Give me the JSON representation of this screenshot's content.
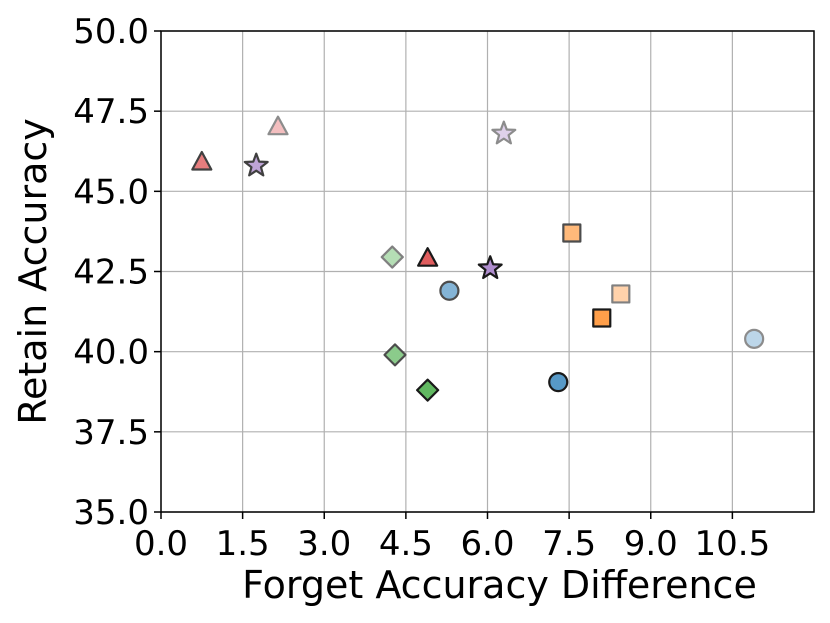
{
  "chart_data": {
    "type": "scatter",
    "title": "",
    "xlabel": "Forget Accuracy Difference",
    "ylabel": "Retain Accuracy",
    "xlim": [
      0.0,
      12.0
    ],
    "ylim": [
      35.0,
      50.0
    ],
    "xticks": [
      "0.0",
      "1.5",
      "3.0",
      "4.5",
      "6.0",
      "7.5",
      "9.0",
      "10.5"
    ],
    "xtick_values": [
      0.0,
      1.5,
      3.0,
      4.5,
      6.0,
      7.5,
      9.0,
      10.5
    ],
    "yticks": [
      "35.0",
      "37.5",
      "40.0",
      "42.5",
      "45.0",
      "47.5",
      "50.0"
    ],
    "ytick_values": [
      35.0,
      37.5,
      40.0,
      42.5,
      45.0,
      47.5,
      50.0
    ],
    "grid": true,
    "legend": "none",
    "points": [
      {
        "x": 0.75,
        "y": 45.9,
        "marker": "triangle",
        "color": "#d62728",
        "alpha": 0.6
      },
      {
        "x": 2.15,
        "y": 47.0,
        "marker": "triangle",
        "color": "#d62728",
        "alpha": 0.3
      },
      {
        "x": 4.9,
        "y": 42.9,
        "marker": "triangle",
        "color": "#d62728",
        "alpha": 0.75
      },
      {
        "x": 1.75,
        "y": 45.8,
        "marker": "star",
        "color": "#9467bd",
        "alpha": 0.6
      },
      {
        "x": 6.3,
        "y": 46.8,
        "marker": "star",
        "color": "#9467bd",
        "alpha": 0.3
      },
      {
        "x": 6.05,
        "y": 42.6,
        "marker": "star",
        "color": "#9467bd",
        "alpha": 0.75
      },
      {
        "x": 4.25,
        "y": 42.95,
        "marker": "diamond",
        "color": "#2ca02c",
        "alpha": 0.35
      },
      {
        "x": 4.3,
        "y": 39.9,
        "marker": "diamond",
        "color": "#2ca02c",
        "alpha": 0.55
      },
      {
        "x": 4.9,
        "y": 38.8,
        "marker": "diamond",
        "color": "#2ca02c",
        "alpha": 0.75
      },
      {
        "x": 5.3,
        "y": 41.9,
        "marker": "circle",
        "color": "#1f77b4",
        "alpha": 0.55
      },
      {
        "x": 7.3,
        "y": 39.05,
        "marker": "circle",
        "color": "#1f77b4",
        "alpha": 0.75
      },
      {
        "x": 10.9,
        "y": 40.4,
        "marker": "circle",
        "color": "#1f77b4",
        "alpha": 0.3
      },
      {
        "x": 7.55,
        "y": 43.7,
        "marker": "square",
        "color": "#ff7f0e",
        "alpha": 0.55
      },
      {
        "x": 8.1,
        "y": 41.05,
        "marker": "square",
        "color": "#ff7f0e",
        "alpha": 0.75
      },
      {
        "x": 8.45,
        "y": 41.8,
        "marker": "square",
        "color": "#ff7f0e",
        "alpha": 0.35
      }
    ]
  }
}
